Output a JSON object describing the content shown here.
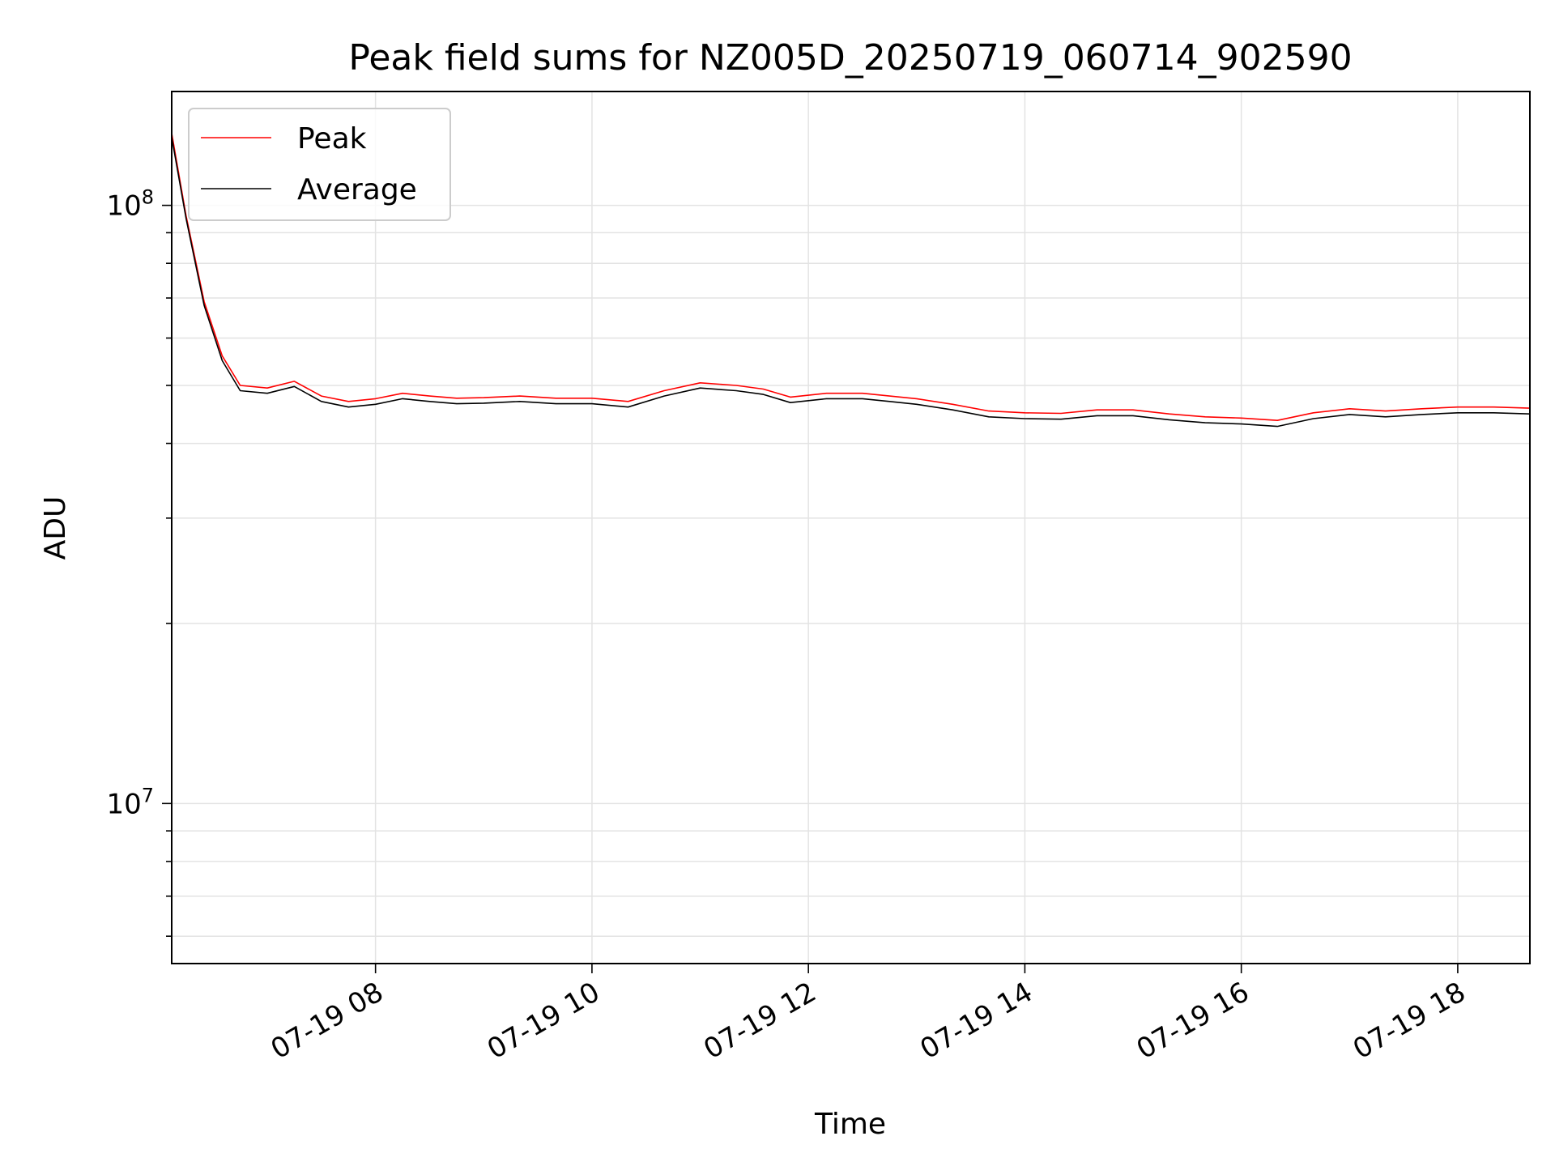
{
  "chart_data": {
    "type": "line",
    "title": "Peak field sums for NZ005D_20250719_060714_902590",
    "xlabel": "Time",
    "ylabel": "ADU",
    "y_scale": "log",
    "ylim": [
      5400000,
      155000000
    ],
    "xlim": [
      "2025-07-19 06:07",
      "2025-07-19 18:40"
    ],
    "grid": true,
    "legend_position": "top-left",
    "x_ticks": [
      {
        "value": "2025-07-19 08:00",
        "label": "07-19 08"
      },
      {
        "value": "2025-07-19 10:00",
        "label": "07-19 10"
      },
      {
        "value": "2025-07-19 12:00",
        "label": "07-19 12"
      },
      {
        "value": "2025-07-19 14:00",
        "label": "07-19 14"
      },
      {
        "value": "2025-07-19 16:00",
        "label": "07-19 16"
      },
      {
        "value": "2025-07-19 18:00",
        "label": "07-19 18"
      }
    ],
    "y_ticks": [
      {
        "value": 10000000,
        "base": "10",
        "exp": "7"
      },
      {
        "value": 100000000,
        "base": "10",
        "exp": "8"
      }
    ],
    "series": [
      {
        "name": "Average",
        "color": "#000000",
        "points": [
          [
            "2025-07-19 06:07",
            130000000
          ],
          [
            "2025-07-19 06:15",
            95000000
          ],
          [
            "2025-07-19 06:25",
            68000000
          ],
          [
            "2025-07-19 06:35",
            55000000
          ],
          [
            "2025-07-19 06:45",
            49000000
          ],
          [
            "2025-07-19 07:00",
            48500000
          ],
          [
            "2025-07-19 07:15",
            49800000
          ],
          [
            "2025-07-19 07:30",
            47000000
          ],
          [
            "2025-07-19 07:45",
            46000000
          ],
          [
            "2025-07-19 08:00",
            46500000
          ],
          [
            "2025-07-19 08:15",
            47500000
          ],
          [
            "2025-07-19 08:30",
            47000000
          ],
          [
            "2025-07-19 08:45",
            46600000
          ],
          [
            "2025-07-19 09:00",
            46700000
          ],
          [
            "2025-07-19 09:20",
            47000000
          ],
          [
            "2025-07-19 09:40",
            46600000
          ],
          [
            "2025-07-19 10:00",
            46600000
          ],
          [
            "2025-07-19 10:20",
            46000000
          ],
          [
            "2025-07-19 10:40",
            48000000
          ],
          [
            "2025-07-19 11:00",
            49500000
          ],
          [
            "2025-07-19 11:20",
            49000000
          ],
          [
            "2025-07-19 11:35",
            48300000
          ],
          [
            "2025-07-19 11:50",
            46800000
          ],
          [
            "2025-07-19 12:10",
            47500000
          ],
          [
            "2025-07-19 12:30",
            47500000
          ],
          [
            "2025-07-19 12:45",
            47000000
          ],
          [
            "2025-07-19 13:00",
            46500000
          ],
          [
            "2025-07-19 13:20",
            45500000
          ],
          [
            "2025-07-19 13:40",
            44300000
          ],
          [
            "2025-07-19 14:00",
            44000000
          ],
          [
            "2025-07-19 14:20",
            43900000
          ],
          [
            "2025-07-19 14:40",
            44500000
          ],
          [
            "2025-07-19 15:00",
            44500000
          ],
          [
            "2025-07-19 15:20",
            43800000
          ],
          [
            "2025-07-19 15:40",
            43300000
          ],
          [
            "2025-07-19 16:00",
            43100000
          ],
          [
            "2025-07-19 16:20",
            42700000
          ],
          [
            "2025-07-19 16:40",
            44000000
          ],
          [
            "2025-07-19 17:00",
            44700000
          ],
          [
            "2025-07-19 17:20",
            44300000
          ],
          [
            "2025-07-19 17:40",
            44700000
          ],
          [
            "2025-07-19 18:00",
            45000000
          ],
          [
            "2025-07-19 18:20",
            45000000
          ],
          [
            "2025-07-19 18:40",
            44800000
          ]
        ]
      },
      {
        "name": "Peak",
        "color": "#ff0000",
        "points": [
          [
            "2025-07-19 06:07",
            132000000
          ],
          [
            "2025-07-19 06:15",
            96000000
          ],
          [
            "2025-07-19 06:25",
            69000000
          ],
          [
            "2025-07-19 06:35",
            56000000
          ],
          [
            "2025-07-19 06:45",
            50000000
          ],
          [
            "2025-07-19 07:00",
            49500000
          ],
          [
            "2025-07-19 07:15",
            50800000
          ],
          [
            "2025-07-19 07:30",
            48000000
          ],
          [
            "2025-07-19 07:45",
            47000000
          ],
          [
            "2025-07-19 08:00",
            47500000
          ],
          [
            "2025-07-19 08:15",
            48500000
          ],
          [
            "2025-07-19 08:30",
            48000000
          ],
          [
            "2025-07-19 08:45",
            47600000
          ],
          [
            "2025-07-19 09:00",
            47700000
          ],
          [
            "2025-07-19 09:20",
            48000000
          ],
          [
            "2025-07-19 09:40",
            47600000
          ],
          [
            "2025-07-19 10:00",
            47600000
          ],
          [
            "2025-07-19 10:20",
            47000000
          ],
          [
            "2025-07-19 10:40",
            49000000
          ],
          [
            "2025-07-19 11:00",
            50500000
          ],
          [
            "2025-07-19 11:20",
            50000000
          ],
          [
            "2025-07-19 11:35",
            49300000
          ],
          [
            "2025-07-19 11:50",
            47800000
          ],
          [
            "2025-07-19 12:10",
            48500000
          ],
          [
            "2025-07-19 12:30",
            48500000
          ],
          [
            "2025-07-19 12:45",
            48000000
          ],
          [
            "2025-07-19 13:00",
            47500000
          ],
          [
            "2025-07-19 13:20",
            46500000
          ],
          [
            "2025-07-19 13:40",
            45300000
          ],
          [
            "2025-07-19 14:00",
            45000000
          ],
          [
            "2025-07-19 14:20",
            44900000
          ],
          [
            "2025-07-19 14:40",
            45500000
          ],
          [
            "2025-07-19 15:00",
            45500000
          ],
          [
            "2025-07-19 15:20",
            44800000
          ],
          [
            "2025-07-19 15:40",
            44300000
          ],
          [
            "2025-07-19 16:00",
            44100000
          ],
          [
            "2025-07-19 16:20",
            43700000
          ],
          [
            "2025-07-19 16:40",
            45000000
          ],
          [
            "2025-07-19 17:00",
            45700000
          ],
          [
            "2025-07-19 17:20",
            45300000
          ],
          [
            "2025-07-19 17:40",
            45700000
          ],
          [
            "2025-07-19 18:00",
            46000000
          ],
          [
            "2025-07-19 18:20",
            46000000
          ],
          [
            "2025-07-19 18:40",
            45800000
          ]
        ]
      }
    ]
  }
}
